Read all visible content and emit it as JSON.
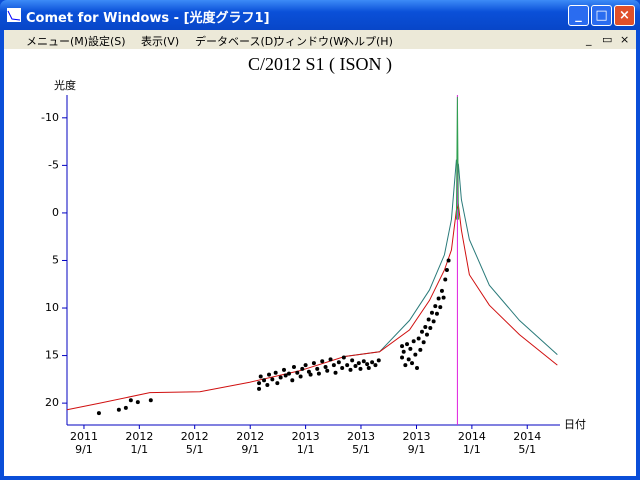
{
  "window": {
    "title": "Comet for Windows - [光度グラフ1]",
    "menu": [
      "メニュー(M)",
      "設定(S)",
      "表示(V)",
      "データベース(D)",
      "ウィンドウ(W)",
      "ヘルプ(H)"
    ]
  },
  "chart_data": {
    "type": "line",
    "title": "C/2012 S1 ( ISON )",
    "y_label": "光度",
    "x_label": "日付",
    "ylim": [
      22.3,
      -12.4
    ],
    "yticks": [
      -10,
      -5,
      0,
      5,
      10,
      15,
      20
    ],
    "xlim": [
      2011.565,
      2014.53
    ],
    "xticks": [
      {
        "value": 2011.667,
        "label": [
          "2011",
          "9/1"
        ]
      },
      {
        "value": 2012.0,
        "label": [
          "2012",
          "1/1"
        ]
      },
      {
        "value": 2012.333,
        "label": [
          "2012",
          "5/1"
        ]
      },
      {
        "value": 2012.667,
        "label": [
          "2012",
          "9/1"
        ]
      },
      {
        "value": 2013.0,
        "label": [
          "2013",
          "1/1"
        ]
      },
      {
        "value": 2013.333,
        "label": [
          "2013",
          "5/1"
        ]
      },
      {
        "value": 2013.667,
        "label": [
          "2013",
          "9/1"
        ]
      },
      {
        "value": 2014.0,
        "label": [
          "2014",
          "1/1"
        ]
      },
      {
        "value": 2014.333,
        "label": [
          "2014",
          "5/1"
        ]
      }
    ],
    "perihelion": 2013.913,
    "perihelion_color": "#e020e0",
    "series": [
      {
        "type": "line",
        "color": "#2a7a7a",
        "x": [
          2013.235,
          2013.445,
          2013.625,
          2013.745,
          2013.835,
          2013.877,
          2013.907,
          2013.919,
          2013.937,
          2013.985,
          2014.105,
          2014.286,
          2014.514
        ],
        "y": [
          15.1,
          14.6,
          11.3,
          8.1,
          4.4,
          0.7,
          -5.6,
          -5.1,
          -1.4,
          2.8,
          7.6,
          11.3,
          14.9
        ]
      },
      {
        "type": "line",
        "color": "#d01010",
        "x": [
          2011.565,
          2011.763,
          2012.063,
          2012.364,
          2012.664,
          2012.964,
          2013.235,
          2013.445,
          2013.625,
          2013.745,
          2013.835,
          2013.877,
          2013.907,
          2013.919,
          2013.937,
          2013.985,
          2014.105,
          2014.286,
          2014.514
        ],
        "y": [
          20.7,
          20.0,
          18.9,
          18.8,
          17.8,
          16.6,
          15.1,
          14.6,
          12.3,
          9.2,
          6.0,
          3.9,
          -0.3,
          -0.8,
          1.8,
          6.5,
          9.7,
          12.8,
          16.0
        ]
      },
      {
        "type": "line",
        "color": "#30a050",
        "x": [
          2013.907,
          2013.913,
          2013.919
        ],
        "y": [
          0.7,
          -12.2,
          0.7
        ]
      },
      {
        "type": "scatter",
        "color": "#000000",
        "x": [
          2011.757,
          2011.877,
          2011.919,
          2011.949,
          2011.991,
          2012.069,
          2012.72,
          2012.72,
          2012.73,
          2012.75,
          2012.77,
          2012.78,
          2012.8,
          2012.82,
          2012.83,
          2012.85,
          2012.87,
          2012.88,
          2012.9,
          2012.92,
          2012.93,
          2012.95,
          2012.97,
          2012.98,
          2013.0,
          2013.02,
          2013.03,
          2013.05,
          2013.07,
          2013.08,
          2013.1,
          2013.12,
          2013.13,
          2013.15,
          2013.17,
          2013.18,
          2013.2,
          2013.22,
          2013.23,
          2013.25,
          2013.27,
          2013.28,
          2013.3,
          2013.32,
          2013.33,
          2013.35,
          2013.37,
          2013.38,
          2013.4,
          2013.42,
          2013.44,
          2013.58,
          2013.58,
          2013.59,
          2013.6,
          2013.61,
          2013.62,
          2013.63,
          2013.64,
          2013.65,
          2013.66,
          2013.67,
          2013.68,
          2013.69,
          2013.7,
          2013.71,
          2013.72,
          2013.73,
          2013.74,
          2013.75,
          2013.76,
          2013.77,
          2013.78,
          2013.79,
          2013.8,
          2013.81,
          2013.82,
          2013.83,
          2013.84,
          2013.85,
          2013.86
        ],
        "y": [
          21.05,
          20.7,
          20.5,
          19.7,
          19.9,
          19.7,
          17.9,
          18.5,
          17.2,
          17.6,
          18.1,
          17.0,
          17.5,
          16.8,
          17.9,
          17.3,
          16.5,
          17.1,
          16.9,
          17.6,
          16.2,
          16.8,
          17.2,
          16.4,
          16.0,
          16.7,
          17.0,
          15.8,
          16.4,
          16.9,
          15.6,
          16.2,
          16.6,
          15.4,
          16.0,
          16.8,
          15.7,
          16.3,
          15.2,
          16.0,
          16.5,
          15.5,
          16.1,
          15.8,
          16.4,
          15.6,
          15.9,
          16.3,
          15.7,
          16.0,
          15.5,
          14.0,
          15.2,
          14.6,
          16.0,
          13.8,
          15.4,
          14.3,
          15.8,
          13.5,
          14.9,
          16.3,
          13.2,
          14.4,
          12.5,
          13.6,
          12.0,
          12.8,
          11.2,
          12.1,
          10.5,
          11.4,
          9.8,
          10.6,
          9.0,
          9.9,
          8.2,
          8.9,
          7.0,
          6.0,
          5.0
        ]
      }
    ]
  }
}
